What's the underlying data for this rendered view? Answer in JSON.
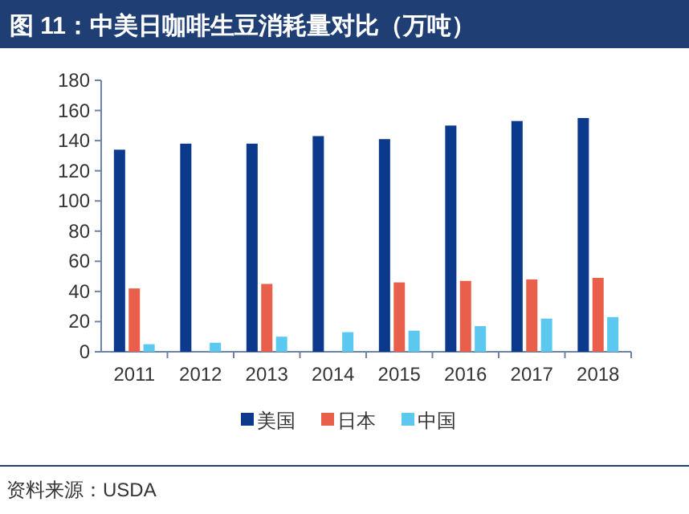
{
  "chart_data": {
    "type": "bar",
    "title": "图 11：中美日咖啡生豆消耗量对比（万吨）",
    "categories": [
      "2011",
      "2012",
      "2013",
      "2014",
      "2015",
      "2016",
      "2017",
      "2018"
    ],
    "series": [
      {
        "name": "美国",
        "color": "#0b3a8c",
        "values": [
          134,
          138,
          138,
          143,
          141,
          150,
          153,
          155
        ]
      },
      {
        "name": "日本",
        "color": "#e8604c",
        "values": [
          42,
          null,
          45,
          null,
          46,
          47,
          48,
          49
        ]
      },
      {
        "name": "中国",
        "color": "#5bc8f0",
        "values": [
          5,
          6,
          10,
          13,
          14,
          17,
          22,
          23
        ]
      }
    ],
    "ylim": [
      0,
      180
    ],
    "yticks": [
      0,
      20,
      40,
      60,
      80,
      100,
      120,
      140,
      160,
      180
    ],
    "grid": false,
    "legend": "bottom",
    "annotations": [
      "资料来源：USDA"
    ]
  }
}
